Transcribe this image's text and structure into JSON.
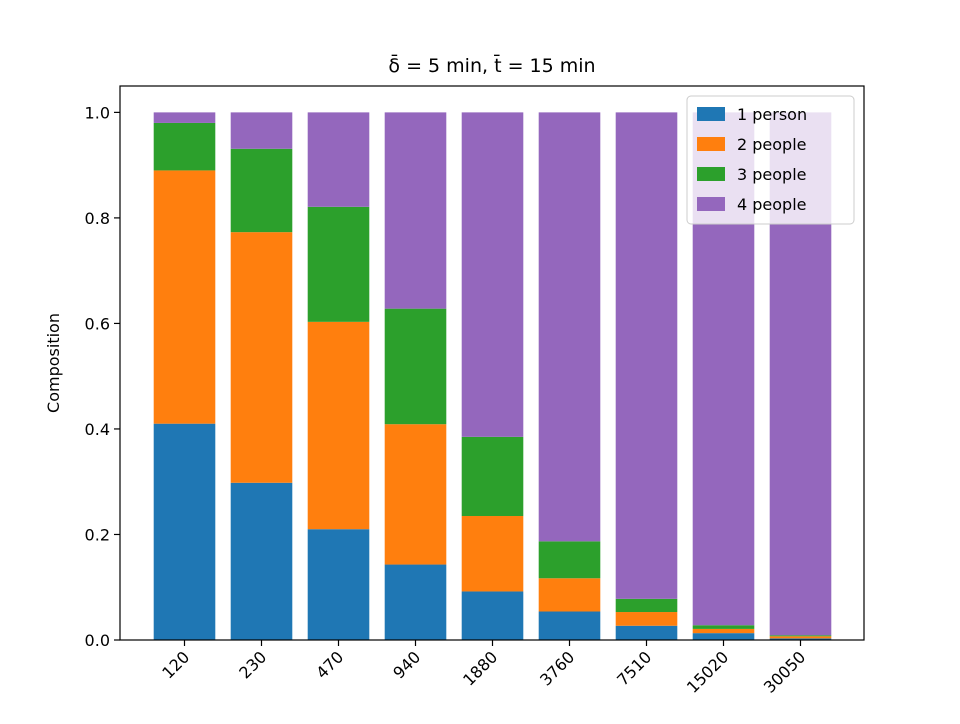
{
  "chart_data": {
    "type": "bar",
    "stacked": true,
    "title": "δ̄ = 5 min, t̄ = 15 min",
    "xlabel": "",
    "ylabel": "Composition",
    "ylim": [
      0,
      1.05
    ],
    "yticks": [
      "0.0",
      "0.2",
      "0.4",
      "0.6",
      "0.8",
      "1.0"
    ],
    "categories": [
      "120",
      "230",
      "470",
      "940",
      "1880",
      "3760",
      "7510",
      "15020",
      "30050"
    ],
    "series": [
      {
        "name": "1 person",
        "color": "#1f77b4",
        "values": [
          0.41,
          0.298,
          0.21,
          0.143,
          0.092,
          0.054,
          0.027,
          0.013,
          0.003
        ]
      },
      {
        "name": "2 people",
        "color": "#ff7f0e",
        "values": [
          0.48,
          0.475,
          0.393,
          0.266,
          0.143,
          0.063,
          0.026,
          0.008,
          0.004
        ]
      },
      {
        "name": "3 people",
        "color": "#2ca02c",
        "values": [
          0.09,
          0.158,
          0.218,
          0.219,
          0.15,
          0.07,
          0.025,
          0.007,
          0.002
        ]
      },
      {
        "name": "4 people",
        "color": "#9467bd",
        "values": [
          0.02,
          0.069,
          0.179,
          0.372,
          0.615,
          0.813,
          0.922,
          0.972,
          0.991
        ]
      }
    ],
    "legend_position": "top-right",
    "grid": false
  }
}
